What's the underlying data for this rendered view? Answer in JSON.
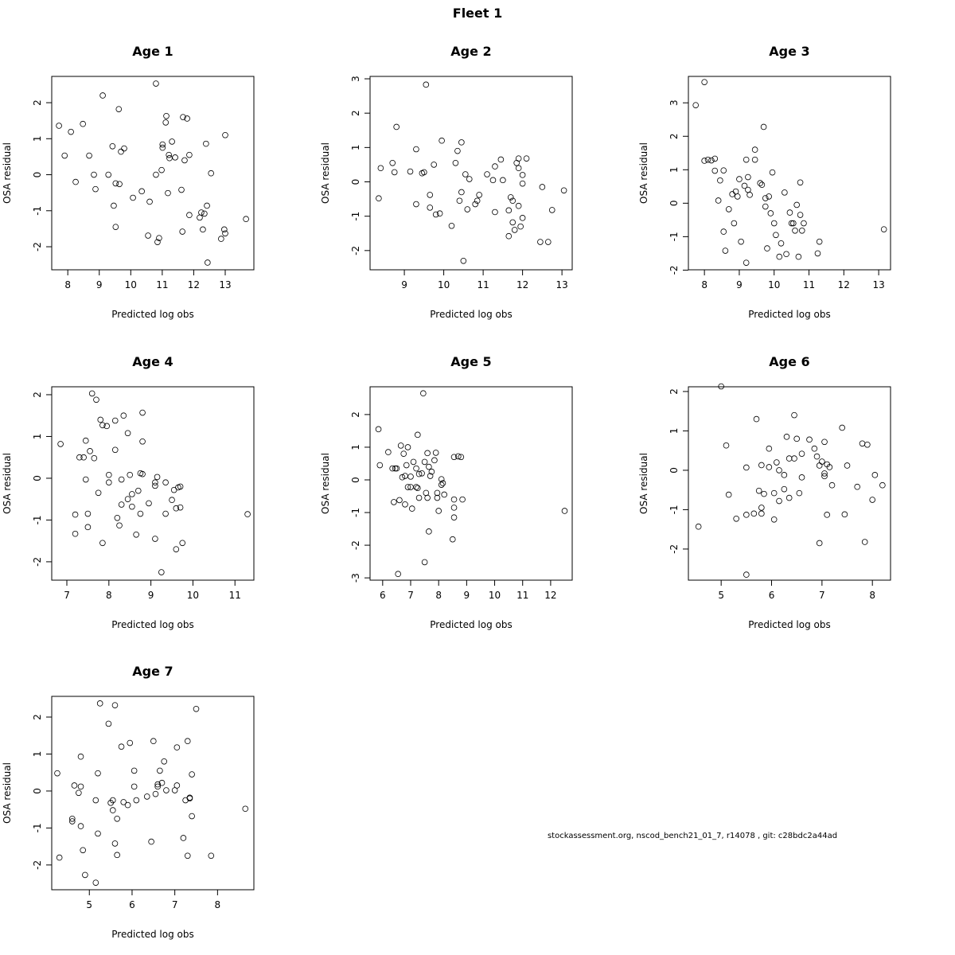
{
  "title": "Fleet 1",
  "footnote": "stockassessment.org, nscod_bench21_01_7, r14078 , git: c28bdc2a44ad",
  "chart_data": [
    {
      "type": "scatter",
      "title": "Age 1",
      "xlabel": "Predicted log obs",
      "ylabel": "OSA residual",
      "x": [
        7.72,
        7.9,
        8.1,
        8.25,
        8.48,
        8.68,
        8.83,
        8.88,
        9.11,
        9.29,
        9.42,
        9.46,
        9.52,
        9.52,
        9.62,
        9.64,
        9.69,
        9.79,
        10.07,
        10.35,
        10.55,
        10.6,
        10.8,
        10.8,
        10.85,
        10.9,
        10.98,
        11.01,
        11.01,
        11.11,
        11.13,
        11.18,
        11.21,
        11.23,
        11.31,
        11.41,
        11.61,
        11.64,
        11.66,
        11.71,
        11.79,
        11.86,
        11.86,
        12.19,
        12.24,
        12.29,
        12.34,
        12.39,
        12.42,
        12.44,
        12.55,
        12.87,
        12.97,
        13.0,
        13.0,
        13.66
      ],
      "y": [
        1.36,
        0.53,
        1.19,
        -0.2,
        1.41,
        0.53,
        0,
        -0.4,
        2.2,
        0,
        0.79,
        -0.86,
        -1.45,
        -0.24,
        1.82,
        -0.26,
        0.64,
        0.73,
        -0.64,
        -0.46,
        -1.69,
        -0.75,
        2.53,
        0,
        -1.87,
        -1.76,
        0.13,
        0.75,
        0.84,
        1.45,
        1.63,
        -0.51,
        0.55,
        0.46,
        0.92,
        0.48,
        -0.42,
        -1.58,
        1.6,
        0.4,
        1.56,
        -1.12,
        0.55,
        -1.19,
        -1.05,
        -1.52,
        -1.08,
        0.86,
        -0.86,
        -2.44,
        0.04,
        -1.78,
        -1.52,
        -1.63,
        1.1,
        -1.23
      ],
      "xlim": [
        7.49,
        13.91
      ],
      "ylim": [
        -2.64,
        2.73
      ],
      "xticks": [
        8,
        9,
        10,
        11,
        12,
        13
      ],
      "yticks": [
        -2,
        -1,
        0,
        1,
        2
      ]
    },
    {
      "type": "scatter",
      "title": "Age 2",
      "xlabel": "Predicted log obs",
      "ylabel": "OSA residual",
      "x": [
        8.35,
        8.4,
        8.7,
        8.75,
        8.8,
        9.15,
        9.3,
        9.3,
        9.45,
        9.5,
        9.55,
        9.65,
        9.65,
        9.75,
        9.8,
        9.9,
        9.95,
        10.2,
        10.3,
        10.35,
        10.4,
        10.45,
        10.45,
        10.5,
        10.55,
        10.6,
        10.65,
        10.8,
        10.85,
        10.9,
        11.1,
        11.25,
        11.3,
        11.3,
        11.45,
        11.5,
        11.65,
        11.65,
        11.7,
        11.75,
        11.75,
        11.8,
        11.85,
        11.9,
        11.9,
        11.9,
        11.95,
        12.0,
        12.0,
        12.0,
        12.1,
        12.45,
        12.5,
        12.65,
        12.75,
        13.05
      ],
      "y": [
        -0.48,
        0.4,
        0.55,
        0.28,
        1.6,
        0.3,
        0.95,
        -0.65,
        0.25,
        0.28,
        2.83,
        -0.38,
        -0.75,
        0.5,
        -0.95,
        -0.92,
        1.2,
        -1.28,
        0.55,
        0.9,
        -0.55,
        1.15,
        -0.3,
        -2.3,
        0.22,
        -0.8,
        0.08,
        -0.65,
        -0.55,
        -0.38,
        0.22,
        0.05,
        -0.88,
        0.45,
        0.65,
        0.05,
        -1.58,
        -0.83,
        -0.45,
        -0.55,
        -1.18,
        -1.4,
        0.55,
        0.4,
        0.68,
        -0.7,
        -1.3,
        -0.05,
        0.2,
        -1.05,
        0.68,
        -1.75,
        -0.15,
        -1.75,
        -0.82,
        -0.25
      ],
      "xlim": [
        8.13,
        13.26
      ],
      "ylim": [
        -2.56,
        3.07
      ],
      "xticks": [
        9,
        10,
        11,
        12,
        13
      ],
      "yticks": [
        -2,
        -1,
        0,
        1,
        2,
        3
      ]
    },
    {
      "type": "scatter",
      "title": "Age 3",
      "xlabel": "Predicted log obs",
      "ylabel": "OSA residual",
      "x": [
        7.75,
        8.0,
        8.0,
        8.1,
        8.2,
        8.3,
        8.3,
        8.4,
        8.45,
        8.55,
        8.55,
        8.6,
        8.7,
        8.8,
        8.85,
        8.9,
        8.95,
        9.0,
        9.05,
        9.15,
        9.2,
        9.2,
        9.25,
        9.25,
        9.3,
        9.45,
        9.45,
        9.6,
        9.65,
        9.7,
        9.75,
        9.75,
        9.8,
        9.85,
        9.9,
        9.95,
        10.0,
        10.05,
        10.15,
        10.2,
        10.3,
        10.35,
        10.45,
        10.5,
        10.55,
        10.6,
        10.65,
        10.7,
        10.75,
        10.75,
        10.8,
        10.85,
        11.25,
        11.3,
        13.15
      ],
      "y": [
        2.93,
        3.62,
        1.27,
        1.3,
        1.28,
        1.33,
        0.97,
        0.08,
        0.68,
        0.98,
        -0.85,
        -1.42,
        -0.18,
        0.27,
        -0.6,
        0.35,
        0.2,
        0.72,
        -1.15,
        0.52,
        -1.78,
        1.3,
        0.4,
        0.78,
        0.25,
        1.6,
        1.3,
        0.6,
        0.55,
        2.28,
        0.15,
        -0.1,
        -1.35,
        0.2,
        -0.3,
        0.92,
        -0.6,
        -0.95,
        -1.6,
        -1.2,
        0.32,
        -1.52,
        -0.28,
        -0.6,
        -0.6,
        -0.82,
        -0.05,
        -1.6,
        -0.35,
        0.62,
        -0.82,
        -0.6,
        -1.5,
        -1.15,
        -0.78
      ],
      "xlim": [
        7.54,
        13.34
      ],
      "ylim": [
        -1.99,
        3.79
      ],
      "xticks": [
        8,
        9,
        10,
        11,
        12,
        13
      ],
      "yticks": [
        -2,
        -1,
        0,
        1,
        2,
        3
      ]
    },
    {
      "type": "scatter",
      "title": "Age 4",
      "xlabel": "Predicted log obs",
      "ylabel": "OSA residual",
      "x": [
        6.85,
        7.2,
        7.2,
        7.3,
        7.4,
        7.45,
        7.45,
        7.5,
        7.5,
        7.55,
        7.6,
        7.65,
        7.7,
        7.75,
        7.8,
        7.85,
        7.85,
        7.95,
        8.0,
        8.0,
        8.15,
        8.15,
        8.2,
        8.25,
        8.3,
        8.3,
        8.35,
        8.45,
        8.45,
        8.5,
        8.55,
        8.55,
        8.65,
        8.7,
        8.75,
        8.75,
        8.8,
        8.8,
        8.8,
        8.95,
        9.1,
        9.1,
        9.1,
        9.15,
        9.25,
        9.35,
        9.35,
        9.5,
        9.55,
        9.6,
        9.6,
        9.65,
        9.7,
        9.7,
        9.75,
        11.3
      ],
      "y": [
        0.82,
        -0.87,
        -1.33,
        0.5,
        0.5,
        -0.03,
        0.9,
        -0.85,
        -1.17,
        0.65,
        2.03,
        0.48,
        1.88,
        -0.35,
        1.4,
        1.27,
        -1.55,
        1.25,
        0.08,
        -0.1,
        1.38,
        0.68,
        -0.95,
        -1.13,
        -0.03,
        -0.63,
        1.5,
        -0.5,
        1.08,
        0.08,
        -0.68,
        -0.38,
        -1.35,
        -0.3,
        -0.85,
        0.12,
        1.57,
        0.1,
        0.88,
        -0.6,
        -1.45,
        -0.18,
        -0.1,
        0.03,
        -2.25,
        -0.85,
        -0.1,
        -0.52,
        -0.28,
        -0.72,
        -1.7,
        -0.22,
        -0.7,
        -0.2,
        -1.55,
        -0.86
      ],
      "xlim": [
        6.64,
        11.45
      ],
      "ylim": [
        -2.44,
        2.19
      ],
      "xticks": [
        7,
        8,
        9,
        10,
        11
      ],
      "yticks": [
        -2,
        -1,
        0,
        1,
        2
      ]
    },
    {
      "type": "scatter",
      "title": "Age 5",
      "xlabel": "Predicted log obs",
      "ylabel": "OSA residual",
      "x": [
        5.85,
        5.9,
        6.2,
        6.35,
        6.4,
        6.45,
        6.5,
        6.55,
        6.6,
        6.65,
        6.7,
        6.75,
        6.8,
        6.8,
        6.85,
        6.9,
        6.9,
        7.0,
        7.0,
        7.05,
        7.1,
        7.2,
        7.2,
        7.25,
        7.25,
        7.3,
        7.3,
        7.4,
        7.45,
        7.5,
        7.5,
        7.55,
        7.6,
        7.6,
        7.65,
        7.65,
        7.7,
        7.75,
        7.85,
        7.9,
        7.95,
        7.95,
        8.0,
        8.1,
        8.1,
        8.15,
        8.2,
        8.5,
        8.55,
        8.55,
        8.55,
        8.55,
        8.7,
        8.8,
        8.85,
        12.5
      ],
      "y": [
        1.55,
        0.45,
        0.85,
        0.35,
        -0.68,
        0.35,
        0.35,
        -2.88,
        -0.62,
        1.05,
        0.08,
        0.8,
        0.12,
        -0.75,
        0.45,
        1.0,
        -0.22,
        0.1,
        -0.22,
        -0.88,
        0.55,
        0.35,
        -0.22,
        -0.25,
        1.38,
        0.18,
        -0.55,
        0.2,
        2.65,
        -2.52,
        0.55,
        -0.4,
        -0.55,
        0.82,
        -1.58,
        0.4,
        0.12,
        0.25,
        0.6,
        0.83,
        -0.55,
        -0.4,
        -0.95,
        0.02,
        -0.15,
        -0.1,
        -0.45,
        -1.82,
        0.7,
        -0.6,
        -0.85,
        -1.15,
        0.72,
        0.7,
        -0.6,
        -0.95
      ],
      "xlim": [
        5.55,
        12.77
      ],
      "ylim": [
        -3.07,
        2.85
      ],
      "xticks": [
        6,
        7,
        8,
        9,
        10,
        11,
        12
      ],
      "yticks": [
        -3,
        -2,
        -1,
        0,
        1,
        2
      ]
    },
    {
      "type": "scatter",
      "title": "Age 6",
      "xlabel": "Predicted log obs",
      "ylabel": "OSA residual",
      "x": [
        4.55,
        5.0,
        5.1,
        5.15,
        5.3,
        5.5,
        5.5,
        5.5,
        5.65,
        5.7,
        5.75,
        5.8,
        5.8,
        5.8,
        5.85,
        5.95,
        5.95,
        6.05,
        6.05,
        6.1,
        6.15,
        6.15,
        6.25,
        6.25,
        6.3,
        6.35,
        6.35,
        6.45,
        6.45,
        6.5,
        6.55,
        6.6,
        6.6,
        6.75,
        6.85,
        6.9,
        6.95,
        6.95,
        7.0,
        7.05,
        7.05,
        7.05,
        7.1,
        7.1,
        7.15,
        7.2,
        7.4,
        7.45,
        7.5,
        7.7,
        7.8,
        7.85,
        7.9,
        8.0,
        8.05,
        8.2
      ],
      "y": [
        -1.43,
        2.13,
        0.63,
        -0.62,
        -1.23,
        0.07,
        -1.13,
        -2.65,
        -1.1,
        1.3,
        -0.52,
        -1.1,
        -0.95,
        0.13,
        -0.6,
        0.55,
        0.08,
        -0.58,
        -1.25,
        0.2,
        0.0,
        -0.78,
        -0.48,
        -0.12,
        0.85,
        -0.7,
        0.3,
        0.3,
        1.4,
        0.8,
        -0.58,
        0.42,
        -0.18,
        0.78,
        0.55,
        0.35,
        -1.85,
        0.12,
        0.22,
        -0.08,
        -0.15,
        0.72,
        -1.13,
        0.15,
        0.08,
        -0.38,
        1.08,
        -1.12,
        0.12,
        -0.42,
        0.68,
        -1.82,
        0.65,
        -0.75,
        -0.12,
        -0.38
      ],
      "xlim": [
        4.35,
        8.36
      ],
      "ylim": [
        -2.79,
        2.12
      ],
      "xticks": [
        5,
        6,
        7,
        8
      ],
      "yticks": [
        -2,
        -1,
        0,
        1,
        2
      ]
    },
    {
      "type": "scatter",
      "title": "Age 7",
      "xlabel": "Predicted log obs",
      "ylabel": "OSA residual",
      "x": [
        4.25,
        4.3,
        4.6,
        4.6,
        4.65,
        4.75,
        4.8,
        4.8,
        4.8,
        4.85,
        4.9,
        5.15,
        5.15,
        5.2,
        5.2,
        5.25,
        5.45,
        5.5,
        5.55,
        5.55,
        5.6,
        5.6,
        5.65,
        5.65,
        5.75,
        5.8,
        5.9,
        5.95,
        6.05,
        6.05,
        6.1,
        6.35,
        6.45,
        6.5,
        6.55,
        6.6,
        6.6,
        6.65,
        6.7,
        6.75,
        6.8,
        7.0,
        7.05,
        7.05,
        7.2,
        7.25,
        7.3,
        7.3,
        7.35,
        7.35,
        7.4,
        7.4,
        7.5,
        7.85,
        8.65
      ],
      "y": [
        0.48,
        -1.8,
        -0.75,
        -0.82,
        0.15,
        -0.05,
        0.93,
        0.12,
        -0.95,
        -1.6,
        -2.27,
        -2.48,
        -0.25,
        0.48,
        -1.15,
        2.37,
        1.82,
        -0.32,
        -0.25,
        -0.52,
        -1.42,
        2.32,
        -0.75,
        -1.73,
        1.2,
        -0.3,
        -0.38,
        1.3,
        0.55,
        0.12,
        -0.25,
        -0.15,
        -1.37,
        1.35,
        -0.08,
        0.12,
        0.18,
        0.55,
        0.22,
        0.8,
        0.02,
        0.02,
        1.18,
        0.15,
        -1.27,
        -0.25,
        1.35,
        -1.75,
        -0.18,
        -0.2,
        0.45,
        -0.68,
        2.22,
        -1.75,
        -0.48
      ],
      "xlim": [
        4.12,
        8.85
      ],
      "ylim": [
        -2.67,
        2.56
      ],
      "xticks": [
        5,
        6,
        7,
        8
      ],
      "yticks": [
        -2,
        -1,
        0,
        1,
        2
      ]
    }
  ]
}
